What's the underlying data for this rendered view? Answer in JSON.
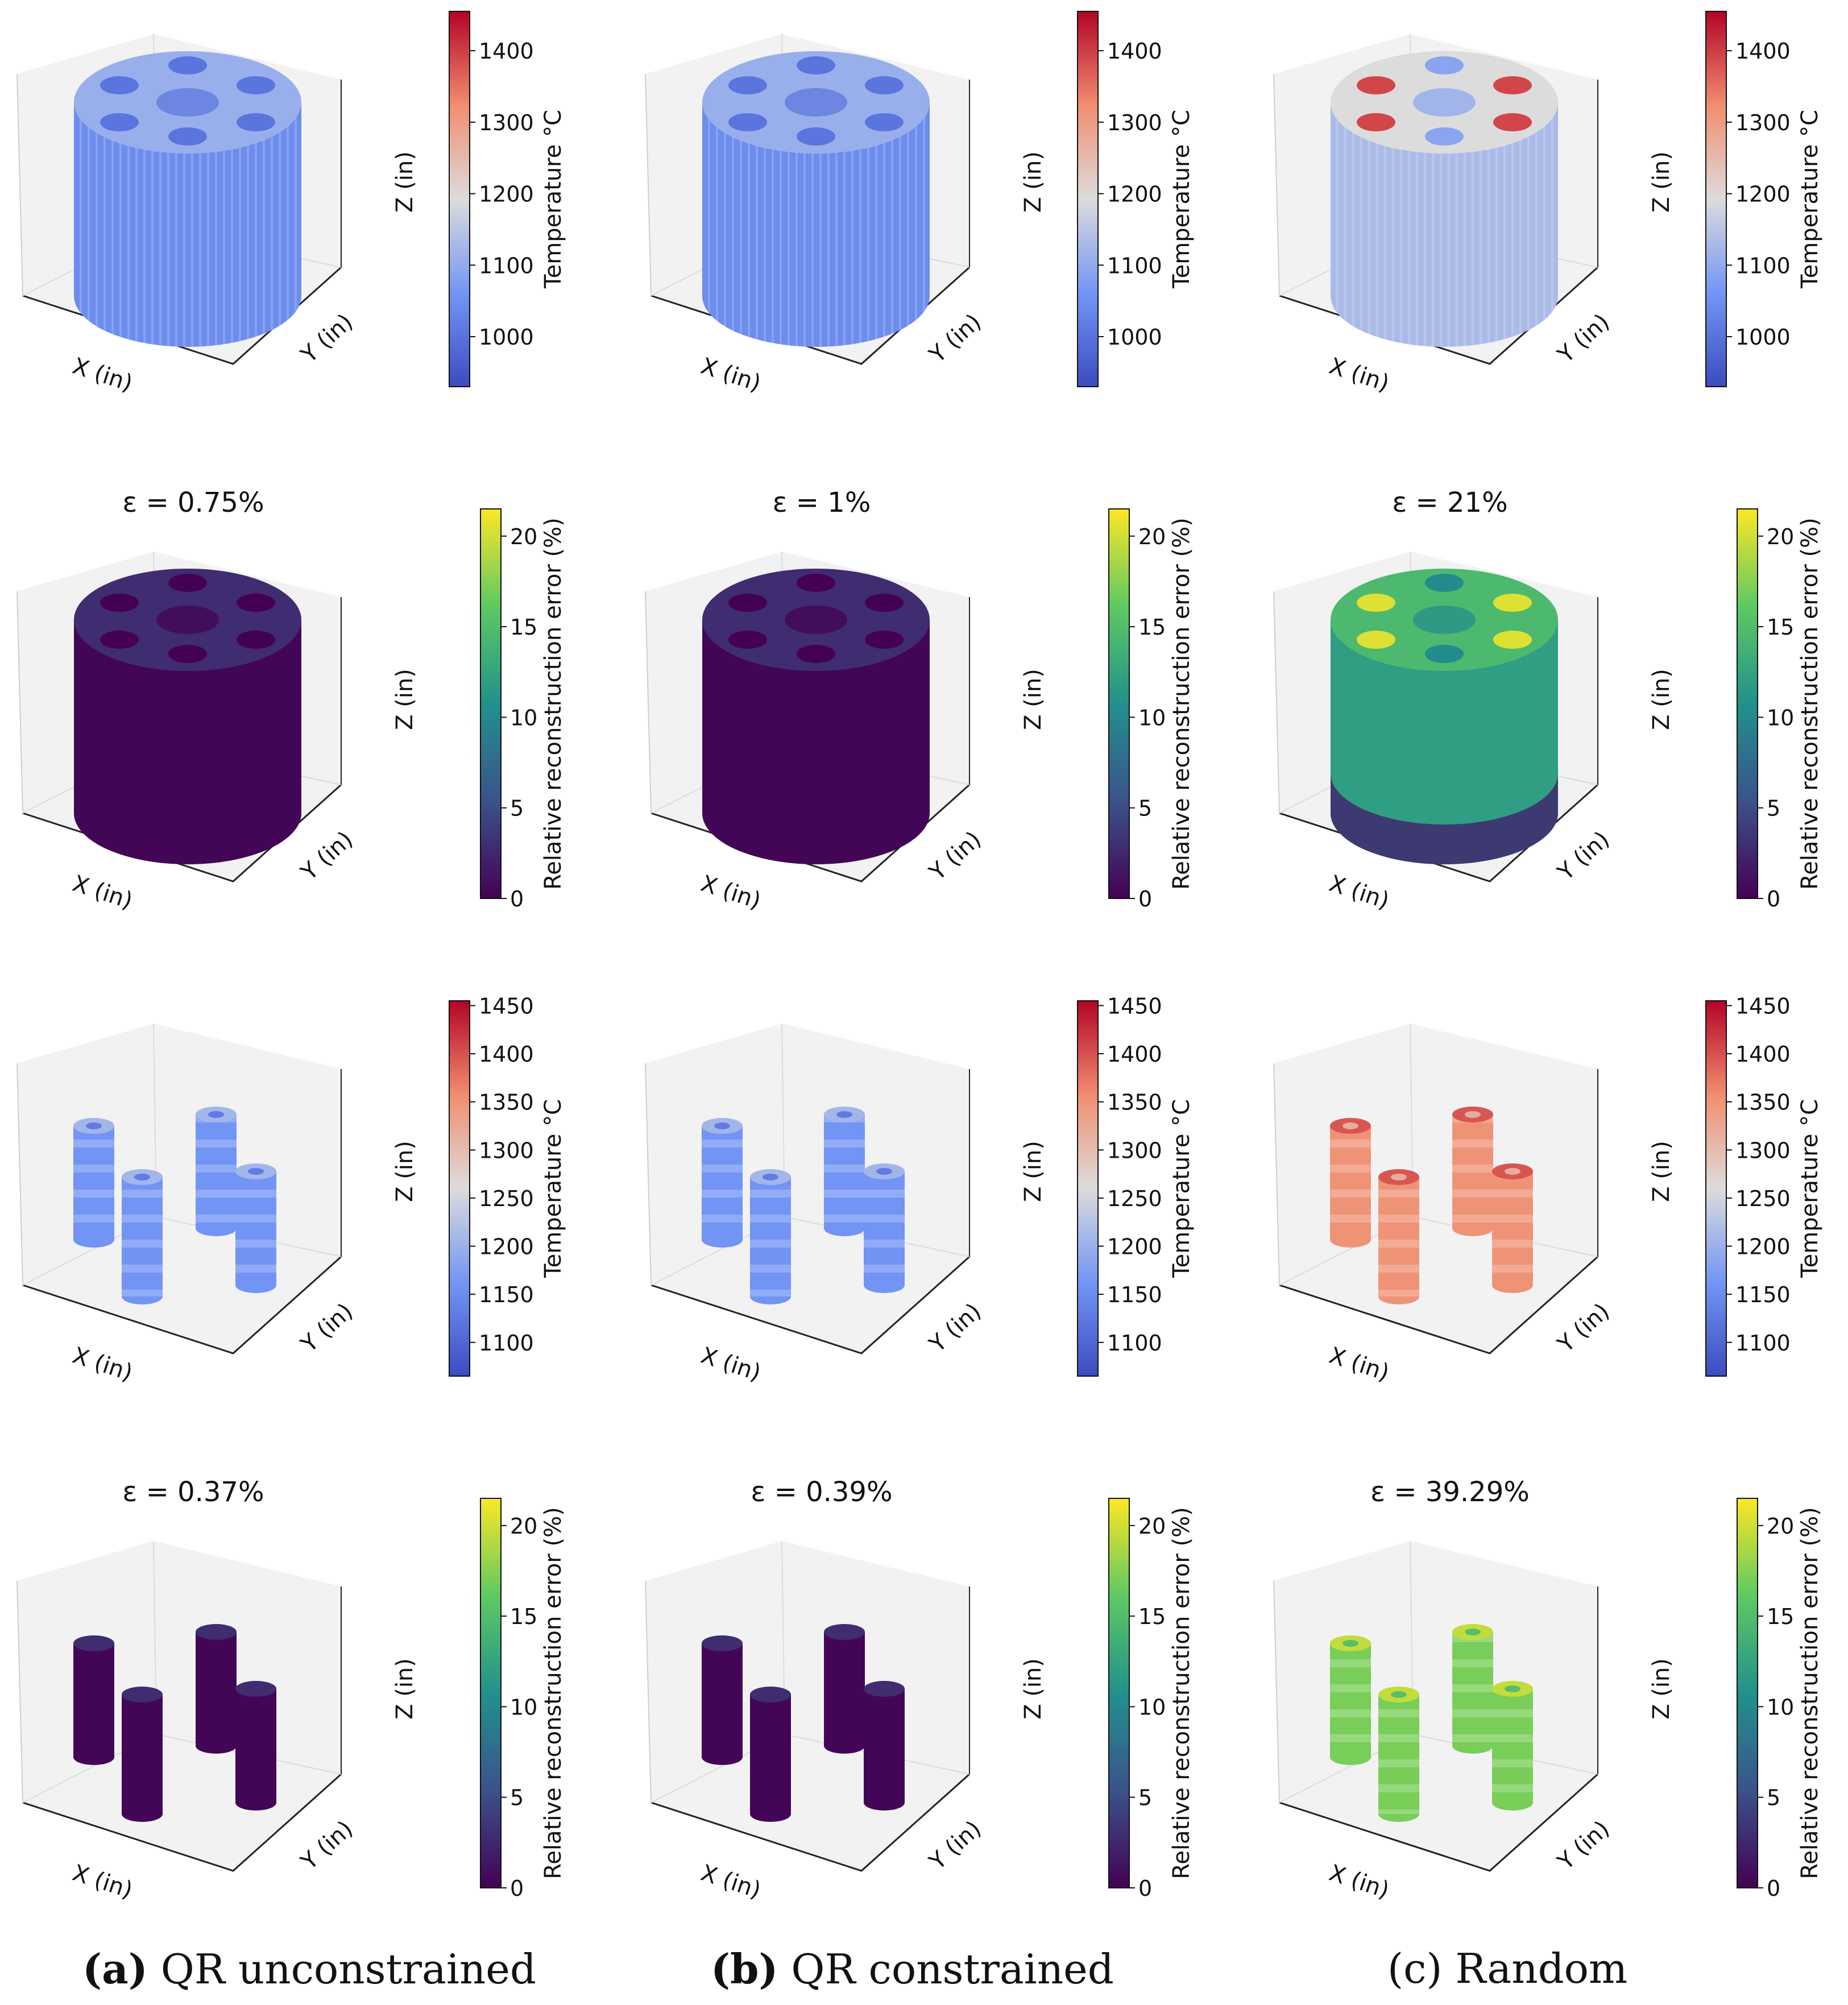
{
  "labels": {
    "x": "X (in)",
    "y": "Y (in)",
    "z": "Z (in)"
  },
  "colors": {
    "cool_low": "#3b4cc0",
    "cool_high": "#b40426",
    "vir_low": "#440154",
    "vir_high": "#fde725",
    "pane": "#f2f2f2",
    "edge": "#999999"
  },
  "captions": [
    {
      "tag": "a",
      "text": "QR unconstrained"
    },
    {
      "tag": "b",
      "text": "QR constrained"
    },
    {
      "tag": "c",
      "text": "Random"
    }
  ],
  "chart_data": {
    "type": "scatter",
    "rows": [
      {
        "kind": "temperature",
        "shape": "cylinder",
        "colorbar": {
          "label": "Temperature °C",
          "range": [
            930,
            1455
          ],
          "ticks": [
            "1000",
            "1100",
            "1200",
            "1300",
            "1400"
          ],
          "tick_values": [
            1000,
            1100,
            1200,
            1300,
            1400
          ]
        },
        "panels": [
          {
            "method": "QR unconstrained",
            "title": "",
            "mean_value": 1045,
            "hot_spots": false
          },
          {
            "method": "QR constrained",
            "title": "",
            "mean_value": 1045,
            "hot_spots": false
          },
          {
            "method": "Random",
            "title": "",
            "mean_value": 1130,
            "hot_spots": true
          }
        ]
      },
      {
        "kind": "error",
        "shape": "cylinder",
        "colorbar": {
          "label": "Relative reconstruction error (%)",
          "range": [
            0,
            21.5
          ],
          "ticks": [
            "0",
            "5",
            "10",
            "15",
            "20"
          ],
          "tick_values": [
            0,
            5,
            10,
            15,
            20
          ]
        },
        "panels": [
          {
            "method": "QR unconstrained",
            "title": "ε = 0.75%",
            "mean_value": 0.3,
            "hot_spots": false
          },
          {
            "method": "QR constrained",
            "title": "ε = 1%",
            "mean_value": 0.3,
            "hot_spots": false
          },
          {
            "method": "Random",
            "title": "ε = 21%",
            "mean_value": 12,
            "hot_spots": true
          }
        ]
      },
      {
        "kind": "temperature",
        "shape": "rods",
        "colorbar": {
          "label": "Temperature °C",
          "range": [
            1065,
            1455
          ],
          "ticks": [
            "1100",
            "1150",
            "1200",
            "1250",
            "1300",
            "1350",
            "1400",
            "1450"
          ],
          "tick_values": [
            1100,
            1150,
            1200,
            1250,
            1300,
            1350,
            1400,
            1450
          ]
        },
        "panels": [
          {
            "method": "QR unconstrained",
            "title": "",
            "mean_value": 1160,
            "hot_spots": false
          },
          {
            "method": "QR constrained",
            "title": "",
            "mean_value": 1160,
            "hot_spots": false
          },
          {
            "method": "Random",
            "title": "",
            "mean_value": 1350,
            "hot_spots": false
          }
        ]
      },
      {
        "kind": "error",
        "shape": "rods",
        "colorbar": {
          "label": "Relative reconstruction error (%)",
          "range": [
            0,
            21.5
          ],
          "ticks": [
            "0",
            "5",
            "10",
            "15",
            "20"
          ],
          "tick_values": [
            0,
            5,
            10,
            15,
            20
          ]
        },
        "panels": [
          {
            "method": "QR unconstrained",
            "title": "ε = 0.37%",
            "mean_value": 0.3,
            "hot_spots": false
          },
          {
            "method": "QR constrained",
            "title": "ε = 0.39%",
            "mean_value": 0.3,
            "hot_spots": false
          },
          {
            "method": "Random",
            "title": "ε = 39.29%",
            "mean_value": 17,
            "hot_spots": false
          }
        ]
      }
    ]
  }
}
